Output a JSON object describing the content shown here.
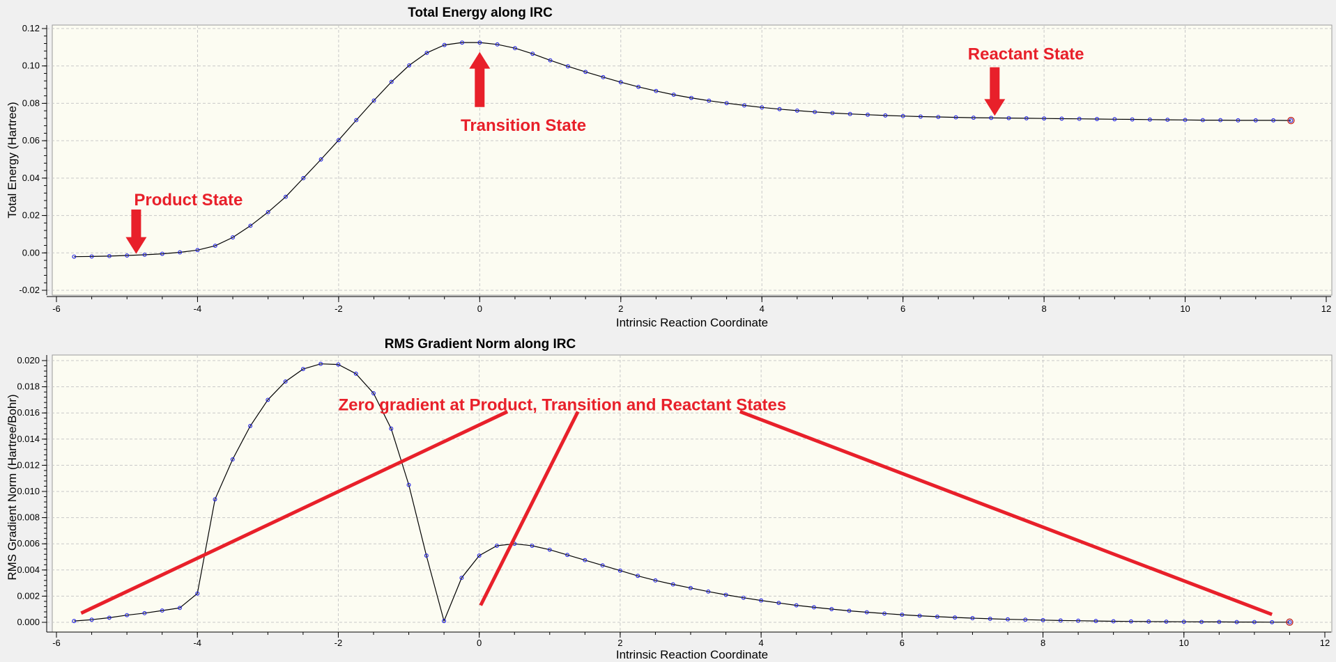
{
  "chart_data": [
    {
      "type": "line",
      "title": "Total Energy along IRC",
      "xlabel": "Intrinsic Reaction Coordinate",
      "ylabel": "Total Energy (Hartree)",
      "xlim": [
        -6,
        12
      ],
      "ylim": [
        -0.02,
        0.12
      ],
      "xticks": [
        -6,
        -4,
        -2,
        0,
        2,
        4,
        6,
        8,
        10,
        12
      ],
      "yticks": [
        -0.02,
        0.0,
        0.02,
        0.04,
        0.06,
        0.08,
        0.1,
        0.12
      ],
      "ytick_labels": [
        "-0.02",
        "0.00",
        "0.02",
        "0.04",
        "0.06",
        "0.08",
        "0.10",
        "0.12"
      ],
      "grid": true,
      "line_color": "#000000",
      "marker_color": "#2020e0",
      "annotation_color": "#e8202a",
      "series": [
        {
          "x": [
            -5.75,
            -5.5,
            -5.25,
            -5.0,
            -4.75,
            -4.5,
            -4.25,
            -4.0,
            -3.75,
            -3.5,
            -3.25,
            -3.0,
            -2.75,
            -2.5,
            -2.25,
            -2.0,
            -1.75,
            -1.5,
            -1.25,
            -1.0,
            -0.75,
            -0.5,
            -0.25,
            0.0,
            0.25,
            0.5,
            0.75,
            1.0,
            1.25,
            1.5,
            1.75,
            2.0,
            2.25,
            2.5,
            2.75,
            3.0,
            3.25,
            3.5,
            3.75,
            4.0,
            4.25,
            4.5,
            4.75,
            5.0,
            5.25,
            5.5,
            5.75,
            6.0,
            6.25,
            6.5,
            6.75,
            7.0,
            7.25,
            7.5,
            7.75,
            8.0,
            8.25,
            8.5,
            8.75,
            9.0,
            9.25,
            9.5,
            9.75,
            10.0,
            10.25,
            10.5,
            10.75,
            11.0,
            11.25,
            11.5
          ],
          "y": [
            -0.002,
            -0.0019,
            -0.0017,
            -0.0014,
            -0.001,
            -0.0005,
            0.0003,
            0.0015,
            0.0038,
            0.0083,
            0.0145,
            0.0218,
            0.03,
            0.04,
            0.05,
            0.0603,
            0.071,
            0.0815,
            0.0915,
            0.1003,
            0.107,
            0.1112,
            0.1125,
            0.1125,
            0.1115,
            0.1095,
            0.1065,
            0.103,
            0.0998,
            0.0968,
            0.094,
            0.0913,
            0.0888,
            0.0866,
            0.0846,
            0.0829,
            0.0814,
            0.0801,
            0.0789,
            0.0778,
            0.0769,
            0.0761,
            0.0754,
            0.0748,
            0.0743,
            0.0739,
            0.0735,
            0.0732,
            0.0729,
            0.0727,
            0.0725,
            0.0723,
            0.0722,
            0.0721,
            0.072,
            0.0719,
            0.0718,
            0.0717,
            0.0716,
            0.0715,
            0.0714,
            0.0713,
            0.0712,
            0.0711,
            0.071,
            0.071,
            0.0709,
            0.0709,
            0.0709,
            0.0708
          ]
        }
      ],
      "annotations": [
        {
          "text": "Product State",
          "x": -4.9,
          "y": 0.0255
        },
        {
          "text": "Transition State",
          "x": -0.27,
          "y": 0.0652
        },
        {
          "text": "Reactant State",
          "x": 6.92,
          "y": 0.1035
        }
      ],
      "arrows": [
        {
          "name": "product-state-arrow",
          "direction": "down",
          "x": -4.87,
          "y_from": 0.0232,
          "y_to": -0.0005
        },
        {
          "name": "transition-state-arrow",
          "direction": "up",
          "x": 0.0,
          "y_from": 0.078,
          "y_to": 0.1075
        },
        {
          "name": "reactant-state-arrow",
          "direction": "down",
          "x": 7.3,
          "y_from": 0.0993,
          "y_to": 0.0733
        }
      ]
    },
    {
      "type": "line",
      "title": "RMS Gradient Norm along IRC",
      "xlabel": "Intrinsic Reaction Coordinate",
      "ylabel": "RMS Gradient Norm (Hartree/Bohr)",
      "xlim": [
        -6,
        12
      ],
      "ylim": [
        0,
        0.02
      ],
      "xticks": [
        -6,
        -4,
        -2,
        0,
        2,
        4,
        6,
        8,
        10,
        12
      ],
      "yticks": [
        0.0,
        0.002,
        0.004,
        0.006,
        0.008,
        0.01,
        0.012,
        0.014,
        0.016,
        0.018,
        0.02
      ],
      "ytick_labels": [
        "0.000",
        "0.002",
        "0.004",
        "0.006",
        "0.008",
        "0.010",
        "0.012",
        "0.014",
        "0.016",
        "0.018",
        "0.020"
      ],
      "grid": true,
      "line_color": "#000000",
      "marker_color": "#2020e0",
      "annotation_color": "#e8202a",
      "series": [
        {
          "x": [
            -5.75,
            -5.5,
            -5.25,
            -5.0,
            -4.75,
            -4.5,
            -4.25,
            -4.0,
            -3.75,
            -3.5,
            -3.25,
            -3.0,
            -2.75,
            -2.5,
            -2.25,
            -2.0,
            -1.75,
            -1.5,
            -1.25,
            -1.0,
            -0.75,
            -0.5,
            -0.25,
            0.0,
            0.25,
            0.5,
            0.75,
            1.0,
            1.25,
            1.5,
            1.75,
            2.0,
            2.25,
            2.5,
            2.75,
            3.0,
            3.25,
            3.5,
            3.75,
            4.0,
            4.25,
            4.5,
            4.75,
            5.0,
            5.25,
            5.5,
            5.75,
            6.0,
            6.25,
            6.5,
            6.75,
            7.0,
            7.25,
            7.5,
            7.75,
            8.0,
            8.25,
            8.5,
            8.75,
            9.0,
            9.25,
            9.5,
            9.75,
            10.0,
            10.25,
            10.5,
            10.75,
            11.0,
            11.25,
            11.5
          ],
          "y": [
            0.0001,
            0.0002,
            0.00035,
            0.00055,
            0.0007,
            0.0009,
            0.0011,
            0.0022,
            0.0094,
            0.01245,
            0.015,
            0.017,
            0.0184,
            0.01935,
            0.01975,
            0.0197,
            0.019,
            0.0175,
            0.0148,
            0.0105,
            0.0051,
            0.0001,
            0.0034,
            0.0051,
            0.00585,
            0.006,
            0.00585,
            0.00555,
            0.00515,
            0.00475,
            0.00435,
            0.00395,
            0.00355,
            0.0032,
            0.0029,
            0.00262,
            0.00235,
            0.0021,
            0.00188,
            0.00167,
            0.00148,
            0.0013,
            0.00115,
            0.00101,
            0.00088,
            0.00077,
            0.00067,
            0.00058,
            0.0005,
            0.00043,
            0.00037,
            0.00032,
            0.00027,
            0.00023,
            0.0002,
            0.00017,
            0.00014,
            0.00012,
            0.0001,
            8e-05,
            7e-05,
            6e-05,
            5e-05,
            4e-05,
            3e-05,
            3e-05,
            2e-05,
            2e-05,
            1e-05,
            1e-05
          ]
        }
      ],
      "annotations": [
        {
          "text": "Zero gradient at Product, Transition and Reactant States",
          "x": -2.0,
          "y": 0.0162
        }
      ],
      "lines": [
        {
          "name": "pointer-line-product",
          "x1": 0.4,
          "y1": 0.0161,
          "x2": -5.65,
          "y2": 0.0007
        },
        {
          "name": "pointer-line-transition",
          "x1": 1.4,
          "y1": 0.0161,
          "x2": 0.02,
          "y2": 0.0013
        },
        {
          "name": "pointer-line-reactant",
          "x1": 3.7,
          "y1": 0.0161,
          "x2": 11.25,
          "y2": 0.0006
        }
      ]
    }
  ]
}
